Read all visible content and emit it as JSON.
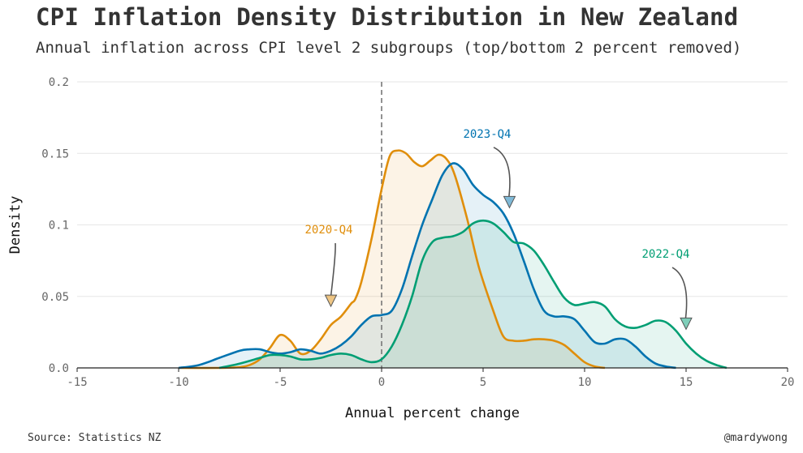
{
  "header": {
    "title": "CPI Inflation Density Distribution in New Zealand",
    "subtitle": "Annual inflation across CPI level 2 subgroups (top/bottom 2 percent removed)"
  },
  "footer": {
    "source": "Source: Statistics NZ",
    "credit": "@mardywong"
  },
  "chart_data": {
    "type": "area",
    "xlabel": "Annual percent change",
    "ylabel": "Density",
    "xlim": [
      -15,
      20
    ],
    "ylim": [
      0,
      0.2
    ],
    "x_ticks": [
      "-15",
      "-10",
      "-5",
      "0",
      "5",
      "10",
      "15",
      "20"
    ],
    "y_ticks": [
      "0.0",
      "0.05",
      "0.1",
      "0.15",
      "0.2"
    ],
    "grid": "horizontal",
    "reference_line_x": 0,
    "series": [
      {
        "name": "2020-Q4",
        "color": "#E08E0B",
        "points": [
          [
            -10,
            0
          ],
          [
            -8,
            0
          ],
          [
            -7,
            0.0005
          ],
          [
            -6.5,
            0.002
          ],
          [
            -6,
            0.006
          ],
          [
            -5.5,
            0.014
          ],
          [
            -5,
            0.023
          ],
          [
            -4.5,
            0.019
          ],
          [
            -4,
            0.01
          ],
          [
            -3.5,
            0.012
          ],
          [
            -3,
            0.02
          ],
          [
            -2.5,
            0.03
          ],
          [
            -2,
            0.036
          ],
          [
            -1.5,
            0.045
          ],
          [
            -1.3,
            0.048
          ],
          [
            -1,
            0.06
          ],
          [
            -0.5,
            0.09
          ],
          [
            0,
            0.125
          ],
          [
            0.4,
            0.148
          ],
          [
            0.8,
            0.152
          ],
          [
            1.2,
            0.15
          ],
          [
            1.6,
            0.144
          ],
          [
            2,
            0.141
          ],
          [
            2.4,
            0.145
          ],
          [
            2.8,
            0.149
          ],
          [
            3.2,
            0.146
          ],
          [
            3.6,
            0.135
          ],
          [
            4.2,
            0.105
          ],
          [
            4.8,
            0.07
          ],
          [
            5.5,
            0.04
          ],
          [
            6,
            0.022
          ],
          [
            6.5,
            0.019
          ],
          [
            7,
            0.019
          ],
          [
            7.5,
            0.02
          ],
          [
            8,
            0.02
          ],
          [
            8.5,
            0.019
          ],
          [
            9,
            0.016
          ],
          [
            9.5,
            0.01
          ],
          [
            10,
            0.004
          ],
          [
            10.5,
            0.001
          ],
          [
            11,
            0
          ]
        ]
      },
      {
        "name": "2023-Q4",
        "color": "#0073B0",
        "points": [
          [
            -10,
            0
          ],
          [
            -9,
            0.002
          ],
          [
            -8,
            0.007
          ],
          [
            -7,
            0.012
          ],
          [
            -6.5,
            0.013
          ],
          [
            -6,
            0.013
          ],
          [
            -5.5,
            0.011
          ],
          [
            -5,
            0.01
          ],
          [
            -4.5,
            0.011
          ],
          [
            -4,
            0.013
          ],
          [
            -3.5,
            0.012
          ],
          [
            -3,
            0.01
          ],
          [
            -2.5,
            0.012
          ],
          [
            -2,
            0.016
          ],
          [
            -1.5,
            0.022
          ],
          [
            -1,
            0.03
          ],
          [
            -0.5,
            0.036
          ],
          [
            0,
            0.037
          ],
          [
            0.5,
            0.04
          ],
          [
            1,
            0.055
          ],
          [
            1.5,
            0.078
          ],
          [
            2,
            0.1
          ],
          [
            2.5,
            0.118
          ],
          [
            3,
            0.135
          ],
          [
            3.5,
            0.143
          ],
          [
            4,
            0.139
          ],
          [
            4.5,
            0.128
          ],
          [
            5,
            0.121
          ],
          [
            5.5,
            0.116
          ],
          [
            6,
            0.108
          ],
          [
            6.5,
            0.094
          ],
          [
            7,
            0.075
          ],
          [
            7.5,
            0.055
          ],
          [
            8,
            0.04
          ],
          [
            8.5,
            0.036
          ],
          [
            9,
            0.036
          ],
          [
            9.5,
            0.034
          ],
          [
            10,
            0.026
          ],
          [
            10.5,
            0.018
          ],
          [
            11,
            0.017
          ],
          [
            11.5,
            0.02
          ],
          [
            12,
            0.02
          ],
          [
            12.5,
            0.015
          ],
          [
            13,
            0.008
          ],
          [
            13.5,
            0.003
          ],
          [
            14,
            0.001
          ],
          [
            14.5,
            0
          ]
        ]
      },
      {
        "name": "2022-Q4",
        "color": "#009E73",
        "points": [
          [
            -8,
            0
          ],
          [
            -7,
            0.003
          ],
          [
            -6,
            0.007
          ],
          [
            -5.5,
            0.009
          ],
          [
            -5,
            0.009
          ],
          [
            -4.5,
            0.008
          ],
          [
            -4,
            0.006
          ],
          [
            -3.5,
            0.006
          ],
          [
            -3,
            0.007
          ],
          [
            -2.5,
            0.009
          ],
          [
            -2,
            0.01
          ],
          [
            -1.5,
            0.009
          ],
          [
            -1,
            0.006
          ],
          [
            -0.5,
            0.004
          ],
          [
            0,
            0.006
          ],
          [
            0.5,
            0.015
          ],
          [
            1,
            0.03
          ],
          [
            1.5,
            0.05
          ],
          [
            2,
            0.075
          ],
          [
            2.5,
            0.088
          ],
          [
            3,
            0.091
          ],
          [
            3.5,
            0.092
          ],
          [
            4,
            0.095
          ],
          [
            4.5,
            0.101
          ],
          [
            5,
            0.103
          ],
          [
            5.5,
            0.101
          ],
          [
            6,
            0.095
          ],
          [
            6.5,
            0.088
          ],
          [
            7,
            0.087
          ],
          [
            7.5,
            0.082
          ],
          [
            8,
            0.072
          ],
          [
            8.5,
            0.06
          ],
          [
            9,
            0.049
          ],
          [
            9.5,
            0.044
          ],
          [
            10,
            0.045
          ],
          [
            10.5,
            0.046
          ],
          [
            11,
            0.043
          ],
          [
            11.5,
            0.034
          ],
          [
            12,
            0.029
          ],
          [
            12.5,
            0.028
          ],
          [
            13,
            0.03
          ],
          [
            13.5,
            0.033
          ],
          [
            14,
            0.032
          ],
          [
            14.5,
            0.026
          ],
          [
            15,
            0.017
          ],
          [
            15.5,
            0.01
          ],
          [
            16,
            0.005
          ],
          [
            16.5,
            0.002
          ],
          [
            17,
            0
          ]
        ]
      }
    ],
    "annotations": [
      {
        "label": "2020-Q4",
        "series": "2020-Q4",
        "color": "#E08E0B",
        "text_x": -2.6,
        "text_y": 0.094,
        "arrow_to_x": -2.5,
        "arrow_to_y": 0.043
      },
      {
        "label": "2023-Q4",
        "series": "2023-Q4",
        "color": "#0073B0",
        "text_x": 5.2,
        "text_y": 0.161,
        "arrow_to_x": 6.3,
        "arrow_to_y": 0.112
      },
      {
        "label": "2022-Q4",
        "series": "2022-Q4",
        "color": "#009E73",
        "text_x": 14.0,
        "text_y": 0.077,
        "arrow_to_x": 15.0,
        "arrow_to_y": 0.027
      }
    ]
  }
}
